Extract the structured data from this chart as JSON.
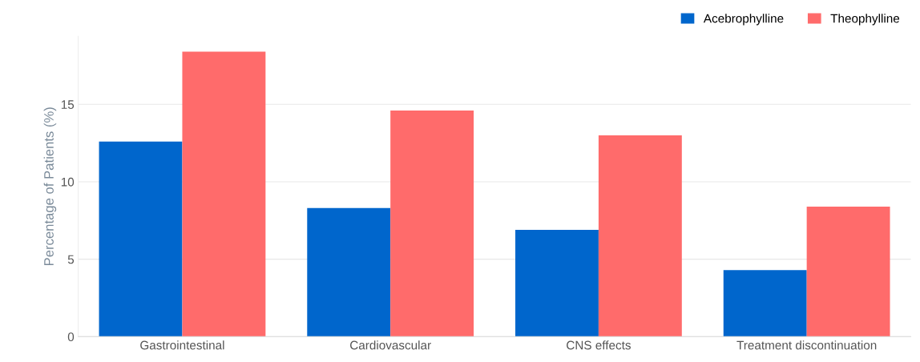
{
  "chart_data": {
    "type": "bar",
    "ylabel": "Percentage of Patients (%)",
    "categories": [
      "Gastrointestinal",
      "Cardiovascular",
      "CNS effects",
      "Treatment discontinuation"
    ],
    "series": [
      {
        "name": "Acebrophylline",
        "color": "#0066cc",
        "values": [
          12.6,
          8.3,
          6.9,
          4.3
        ]
      },
      {
        "name": "Theophylline",
        "color": "#ff6b6b",
        "values": [
          18.4,
          14.6,
          13.0,
          8.4
        ]
      }
    ],
    "ylim": [
      0,
      19.4
    ],
    "yticks": [
      0,
      5,
      10,
      15
    ],
    "grid": "y",
    "legend": "top right"
  }
}
